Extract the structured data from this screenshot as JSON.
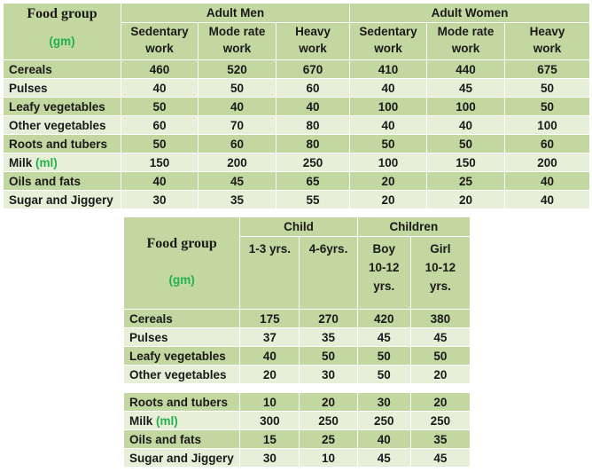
{
  "table1": {
    "food_group_label": "Food group",
    "unit_label": "(gm)",
    "groups": [
      "Adult Men",
      "Adult Women"
    ],
    "columns": [
      [
        "Sedentary",
        "work"
      ],
      [
        "Mode rate",
        "work"
      ],
      [
        "Heavy",
        "work"
      ],
      [
        "Sedentary",
        "work"
      ],
      [
        "Mode rate",
        "work"
      ],
      [
        "Heavy",
        "work"
      ]
    ],
    "rows": [
      {
        "label": "Cereals",
        "unit": "",
        "values": [
          "460",
          "520",
          "670",
          "410",
          "440",
          "675"
        ]
      },
      {
        "label": "Pulses",
        "unit": "",
        "values": [
          "40",
          "50",
          "60",
          "40",
          "45",
          "50"
        ]
      },
      {
        "label": "Leafy vegetables",
        "unit": "",
        "values": [
          "50",
          "40",
          "40",
          "100",
          "100",
          "50"
        ]
      },
      {
        "label": "Other vegetables",
        "unit": "",
        "values": [
          "60",
          "70",
          "80",
          "40",
          "40",
          "100"
        ]
      },
      {
        "label": "Roots and tubers",
        "unit": "",
        "values": [
          "50",
          "60",
          "80",
          "50",
          "50",
          "60"
        ]
      },
      {
        "label": "Milk",
        "unit": "(ml)",
        "values": [
          "150",
          "200",
          "250",
          "100",
          "150",
          "200"
        ]
      },
      {
        "label": "Oils and fats",
        "unit": "",
        "values": [
          "40",
          "45",
          "65",
          "20",
          "25",
          "40"
        ]
      },
      {
        "label": "Sugar and Jiggery",
        "unit": "",
        "values": [
          "30",
          "35",
          "55",
          "20",
          "20",
          "40"
        ]
      }
    ]
  },
  "table2": {
    "food_group_label": "Food group",
    "unit_label": "(gm)",
    "groups": [
      "Child",
      "Children"
    ],
    "columns": [
      [
        "1-3 yrs."
      ],
      [
        "4-6yrs."
      ],
      [
        "Boy",
        "10-12",
        "yrs."
      ],
      [
        "Girl",
        "10-12",
        "yrs."
      ]
    ],
    "rows": [
      {
        "label": "Cereals",
        "unit": "",
        "values": [
          "175",
          "270",
          "420",
          "380"
        ]
      },
      {
        "label": "Pulses",
        "unit": "",
        "values": [
          "37",
          "35",
          "45",
          "45"
        ]
      },
      {
        "label": "Leafy vegetables",
        "unit": "",
        "values": [
          "40",
          "50",
          "50",
          "50"
        ]
      },
      {
        "label": "Other vegetables",
        "unit": "",
        "values": [
          "20",
          "30",
          "50",
          "20"
        ]
      }
    ]
  },
  "table3": {
    "rows": [
      {
        "label": "Roots and tubers",
        "unit": "",
        "values": [
          "10",
          "20",
          "30",
          "20"
        ]
      },
      {
        "label": "Milk",
        "unit": "(ml)",
        "values": [
          "300",
          "250",
          "250",
          "250"
        ]
      },
      {
        "label": "Oils and fats",
        "unit": "",
        "values": [
          "15",
          "25",
          "40",
          "35"
        ]
      },
      {
        "label": "Sugar and Jiggery",
        "unit": "",
        "values": [
          "30",
          "10",
          "45",
          "45"
        ]
      }
    ]
  },
  "colors": {
    "dark_row": "#c3d7a0",
    "light_row": "#e8efd9",
    "unit_green": "#22b14c"
  }
}
